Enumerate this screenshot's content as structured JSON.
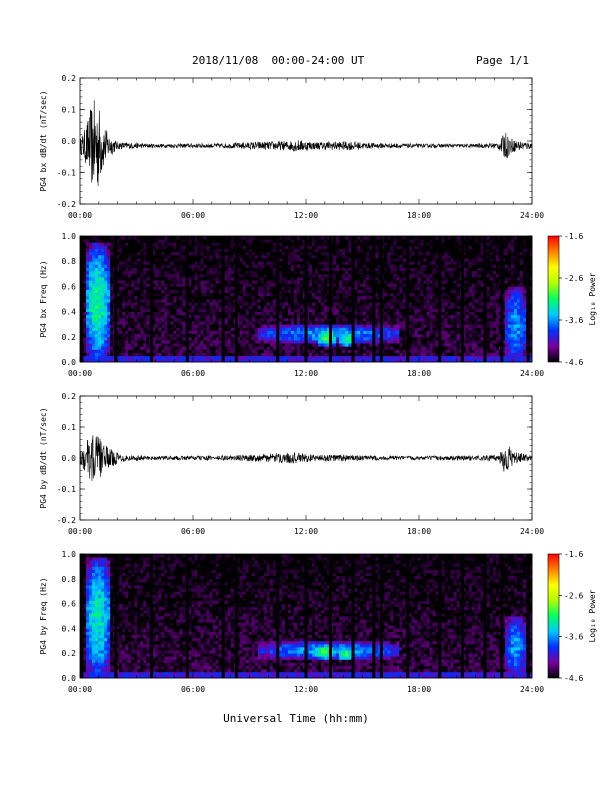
{
  "header": {
    "title": "2018/11/08  00:00-24:00 UT",
    "page": "Page 1/1"
  },
  "colors": {
    "trace": "#000000",
    "colormap": [
      "#000000",
      "#7a00a0",
      "#0030ff",
      "#00c8ff",
      "#00ff60",
      "#b0ff00",
      "#ffff00",
      "#ff8000",
      "#ff0000"
    ]
  },
  "chart_data": [
    {
      "type": "line",
      "ylabel": "PG4 bx dB/dt (nT/sec)",
      "xlim": [
        0,
        24
      ],
      "ylim": [
        -0.2,
        0.2
      ],
      "yticks": [
        "-0.2",
        "-0.1",
        "0.0",
        "0.1",
        "0.2"
      ],
      "xticks": [
        "00:00",
        "06:00",
        "12:00",
        "18:00",
        "24:00"
      ],
      "baseline": -0.015,
      "envelope": [
        [
          0,
          0.02
        ],
        [
          0.3,
          0.06
        ],
        [
          0.6,
          0.13
        ],
        [
          0.9,
          0.16
        ],
        [
          1.2,
          0.08
        ],
        [
          1.5,
          0.04
        ],
        [
          2.0,
          0.012
        ],
        [
          4.0,
          0.006
        ],
        [
          8.0,
          0.008
        ],
        [
          9.0,
          0.012
        ],
        [
          11.0,
          0.015
        ],
        [
          11.5,
          0.02
        ],
        [
          12.5,
          0.012
        ],
        [
          14.5,
          0.015
        ],
        [
          15.0,
          0.01
        ],
        [
          18.0,
          0.006
        ],
        [
          21.0,
          0.006
        ],
        [
          22.2,
          0.01
        ],
        [
          22.6,
          0.045
        ],
        [
          23.0,
          0.02
        ],
        [
          24.0,
          0.01
        ]
      ]
    },
    {
      "type": "heatmap",
      "ylabel": "PG4 bx Freq (Hz)",
      "xlim": [
        0,
        24
      ],
      "ylim": [
        0,
        1.0
      ],
      "yticks": [
        "0.0",
        "0.2",
        "0.4",
        "0.6",
        "0.8",
        "1.0"
      ],
      "xticks": [
        "00:00",
        "06:00",
        "12:00",
        "18:00",
        "24:00"
      ],
      "colorbar": {
        "label": "Log₁₀ Power",
        "range": [
          -4.6,
          -1.6
        ],
        "ticks": [
          "-1.6",
          "-2.6",
          "-3.6",
          "-4.6"
        ]
      },
      "gaps": [
        0.1,
        1.9,
        3.8,
        5.7,
        7.6,
        8.3,
        10.5,
        12.0,
        13.3,
        14.5,
        15.6,
        16.0,
        17.4,
        19.1,
        20.3,
        21.5,
        22.4,
        23.8
      ],
      "features": [
        {
          "t": [
            0.3,
            1.6
          ],
          "f": [
            0.0,
            0.95
          ],
          "level": -3.2
        },
        {
          "t": [
            9.5,
            17.0
          ],
          "f": [
            0.15,
            0.3
          ],
          "level": -3.6
        },
        {
          "t": [
            12.6,
            13.6
          ],
          "f": [
            0.12,
            0.28
          ],
          "level": -3.0
        },
        {
          "t": [
            13.8,
            14.6
          ],
          "f": [
            0.12,
            0.24
          ],
          "level": -3.1
        },
        {
          "t": [
            22.6,
            23.7
          ],
          "f": [
            0.0,
            0.6
          ],
          "level": -3.6
        }
      ]
    },
    {
      "type": "line",
      "ylabel": "PG4 by dB/dt (nT/sec)",
      "xlim": [
        0,
        24
      ],
      "ylim": [
        -0.2,
        0.2
      ],
      "yticks": [
        "-0.2",
        "-0.1",
        "0.0",
        "0.1",
        "0.2"
      ],
      "xticks": [
        "00:00",
        "06:00",
        "12:00",
        "18:00",
        "24:00"
      ],
      "baseline": 0.0,
      "envelope": [
        [
          0,
          0.02
        ],
        [
          0.4,
          0.06
        ],
        [
          0.8,
          0.09
        ],
        [
          1.2,
          0.05
        ],
        [
          1.6,
          0.03
        ],
        [
          2.2,
          0.012
        ],
        [
          4.0,
          0.006
        ],
        [
          8.0,
          0.008
        ],
        [
          11.5,
          0.018
        ],
        [
          12.5,
          0.01
        ],
        [
          14.0,
          0.012
        ],
        [
          15.0,
          0.008
        ],
        [
          18.0,
          0.006
        ],
        [
          22.2,
          0.01
        ],
        [
          22.6,
          0.06
        ],
        [
          23.0,
          0.02
        ],
        [
          24.0,
          0.008
        ]
      ]
    },
    {
      "type": "heatmap",
      "ylabel": "PG4 by Freq (Hz)",
      "xlim": [
        0,
        24
      ],
      "ylim": [
        0,
        1.0
      ],
      "yticks": [
        "0.0",
        "0.2",
        "0.4",
        "0.6",
        "0.8",
        "1.0"
      ],
      "xticks": [
        "00:00",
        "06:00",
        "12:00",
        "18:00",
        "24:00"
      ],
      "colorbar": {
        "label": "Log₁₀ Power",
        "range": [
          -4.6,
          -1.6
        ],
        "ticks": [
          "-1.6",
          "-2.6",
          "-3.6",
          "-4.6"
        ]
      },
      "gaps": [
        0.1,
        1.9,
        3.8,
        5.7,
        7.6,
        8.3,
        10.5,
        12.0,
        13.3,
        14.5,
        15.6,
        16.0,
        17.4,
        19.1,
        20.3,
        21.5,
        22.4,
        23.8
      ],
      "features": [
        {
          "t": [
            0.3,
            1.6
          ],
          "f": [
            0.0,
            0.98
          ],
          "level": -3.3
        },
        {
          "t": [
            9.5,
            17.0
          ],
          "f": [
            0.15,
            0.3
          ],
          "level": -3.6
        },
        {
          "t": [
            12.4,
            13.5
          ],
          "f": [
            0.15,
            0.28
          ],
          "level": -3.0
        },
        {
          "t": [
            13.7,
            14.5
          ],
          "f": [
            0.14,
            0.24
          ],
          "level": -3.0
        },
        {
          "t": [
            22.6,
            23.7
          ],
          "f": [
            0.0,
            0.5
          ],
          "level": -3.6
        }
      ]
    }
  ],
  "xlabel": "Universal Time (hh:mm)"
}
